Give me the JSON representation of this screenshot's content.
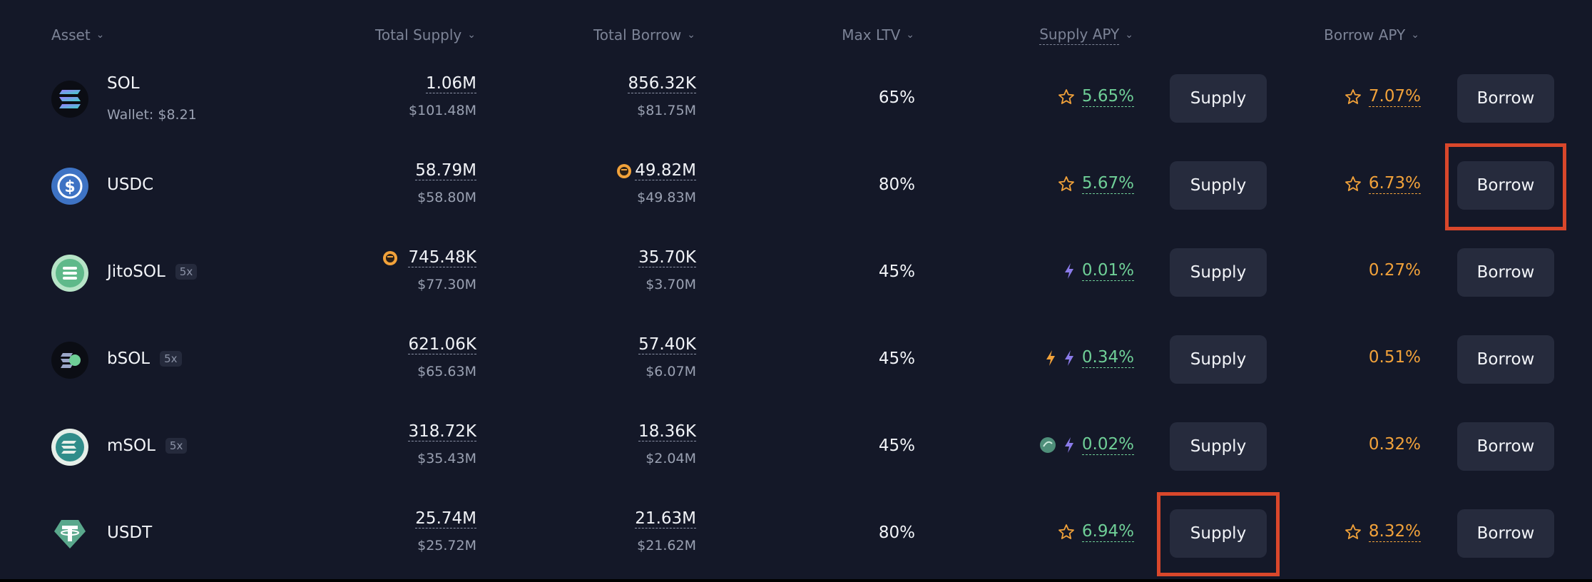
{
  "headers": {
    "asset": "Asset",
    "total_supply": "Total Supply",
    "total_borrow": "Total Borrow",
    "max_ltv": "Max LTV",
    "supply_apy": "Supply APY",
    "borrow_apy": "Borrow APY"
  },
  "rows": [
    {
      "name": "SOL",
      "sub": "Wallet: $8.21",
      "badge": "",
      "supply": "1.06M",
      "supply_usd": "$101.48M",
      "borrow": "856.32K",
      "borrow_usd": "$81.75M",
      "ltv": "65%",
      "supply_apy": "5.65%",
      "borrow_apy": "7.07%",
      "supply_btn": "Supply",
      "borrow_btn": "Borrow"
    },
    {
      "name": "USDC",
      "sub": "",
      "badge": "",
      "supply": "58.79M",
      "supply_usd": "$58.80M",
      "borrow": "49.82M",
      "borrow_usd": "$49.83M",
      "ltv": "80%",
      "supply_apy": "5.67%",
      "borrow_apy": "6.73%",
      "supply_btn": "Supply",
      "borrow_btn": "Borrow"
    },
    {
      "name": "JitoSOL",
      "sub": "",
      "badge": "5x",
      "supply": "745.48K",
      "supply_usd": "$77.30M",
      "borrow": "35.70K",
      "borrow_usd": "$3.70M",
      "ltv": "45%",
      "supply_apy": "0.01%",
      "borrow_apy": "0.27%",
      "supply_btn": "Supply",
      "borrow_btn": "Borrow"
    },
    {
      "name": "bSOL",
      "sub": "",
      "badge": "5x",
      "supply": "621.06K",
      "supply_usd": "$65.63M",
      "borrow": "57.40K",
      "borrow_usd": "$6.07M",
      "ltv": "45%",
      "supply_apy": "0.34%",
      "borrow_apy": "0.51%",
      "supply_btn": "Supply",
      "borrow_btn": "Borrow"
    },
    {
      "name": "mSOL",
      "sub": "",
      "badge": "5x",
      "supply": "318.72K",
      "supply_usd": "$35.43M",
      "borrow": "18.36K",
      "borrow_usd": "$2.04M",
      "ltv": "45%",
      "supply_apy": "0.02%",
      "borrow_apy": "0.32%",
      "supply_btn": "Supply",
      "borrow_btn": "Borrow"
    },
    {
      "name": "USDT",
      "sub": "",
      "badge": "",
      "supply": "25.74M",
      "supply_usd": "$25.72M",
      "borrow": "21.63M",
      "borrow_usd": "$21.62M",
      "ltv": "80%",
      "supply_apy": "6.94%",
      "borrow_apy": "8.32%",
      "supply_btn": "Supply",
      "borrow_btn": "Borrow"
    }
  ],
  "icons": {
    "sort": "chevron-down-icon",
    "star": "star-icon",
    "bolt": "lightning-icon",
    "emissions": "coin-icon"
  },
  "colors": {
    "background": "#141828",
    "button": "#262b3d",
    "supply_apy": "#6fcf97",
    "borrow_apy": "#f2a23a",
    "highlight": "#d9472b"
  }
}
